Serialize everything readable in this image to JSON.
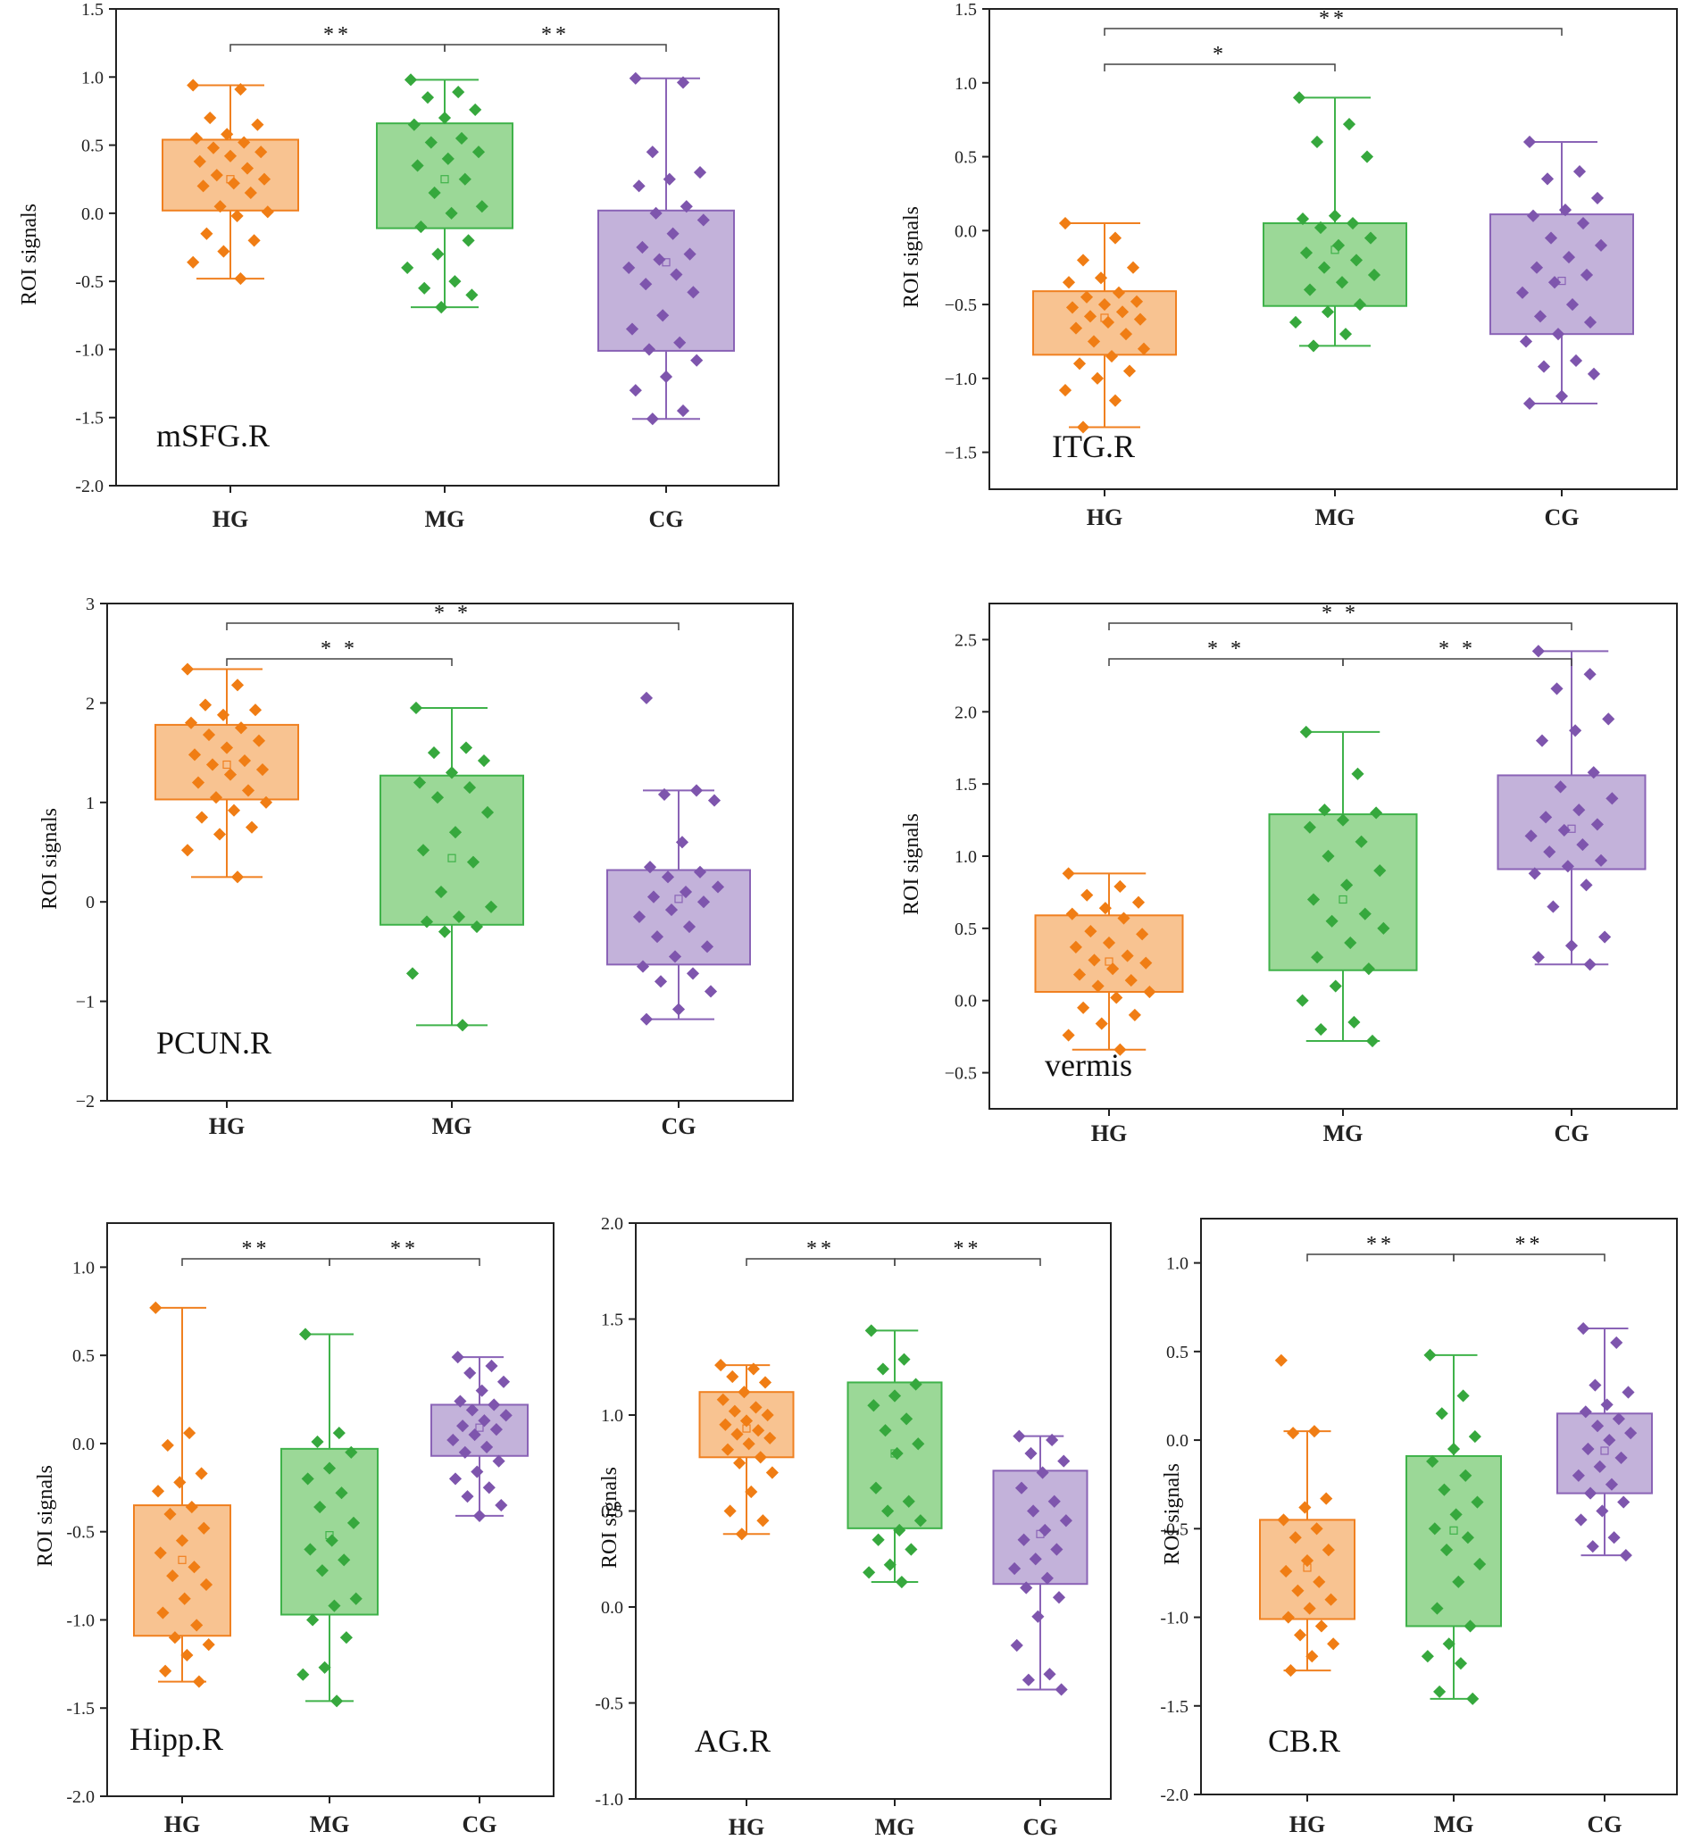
{
  "colors": {
    "HG": {
      "fill": "#f8c391",
      "stroke": "#f08020",
      "point": "#f07d14"
    },
    "MG": {
      "fill": "#9bd897",
      "stroke": "#3fb24a",
      "point": "#36a83d"
    },
    "CG": {
      "fill": "#c3b2da",
      "stroke": "#8a63b6",
      "point": "#7e55ad"
    }
  },
  "chart_data": [
    {
      "type": "boxplot",
      "title": "mSFG.R",
      "ylabel": "ROI signals",
      "categories": [
        "HG",
        "MG",
        "CG"
      ],
      "ylim": [
        -2.0,
        1.5
      ],
      "yticks": [
        -2.0,
        -1.5,
        -1.0,
        -0.5,
        0.0,
        0.5,
        1.0,
        1.5
      ],
      "tick_labels": [
        "-2.0",
        "-1.5",
        "-1.0",
        "-0.5",
        "0.0",
        "0.5",
        "1.0",
        "1.5"
      ],
      "boxes": [
        {
          "group": "HG",
          "q1": 0.02,
          "q3": 0.54,
          "mean": 0.25,
          "whisker_low": -0.48,
          "whisker_high": 0.94,
          "points": [
            0.94,
            0.91,
            0.7,
            0.65,
            0.58,
            0.55,
            0.52,
            0.48,
            0.45,
            0.42,
            0.38,
            0.33,
            0.28,
            0.25,
            0.22,
            0.2,
            0.15,
            0.05,
            0.01,
            -0.02,
            -0.15,
            -0.2,
            -0.28,
            -0.36,
            -0.48
          ]
        },
        {
          "group": "MG",
          "q1": -0.11,
          "q3": 0.66,
          "mean": 0.25,
          "whisker_low": -0.69,
          "whisker_high": 0.98,
          "points": [
            0.98,
            0.89,
            0.85,
            0.76,
            0.7,
            0.65,
            0.55,
            0.52,
            0.45,
            0.4,
            0.35,
            0.25,
            0.15,
            0.05,
            0.0,
            -0.1,
            -0.2,
            -0.3,
            -0.4,
            -0.5,
            -0.55,
            -0.6,
            -0.69
          ]
        },
        {
          "group": "CG",
          "q1": -1.01,
          "q3": 0.02,
          "mean": -0.36,
          "whisker_low": -1.51,
          "whisker_high": 0.99,
          "points": [
            0.99,
            0.96,
            0.45,
            0.3,
            0.25,
            0.2,
            0.05,
            0.0,
            -0.05,
            -0.15,
            -0.25,
            -0.3,
            -0.34,
            -0.4,
            -0.45,
            -0.52,
            -0.58,
            -0.75,
            -0.85,
            -0.95,
            -1.0,
            -1.08,
            -1.2,
            -1.3,
            -1.45,
            -1.51
          ]
        }
      ],
      "significance": [
        {
          "from": "HG",
          "to": "MG",
          "label": "**",
          "level": 0
        },
        {
          "from": "MG",
          "to": "CG",
          "label": "**",
          "level": 0
        }
      ]
    },
    {
      "type": "boxplot",
      "title": "ITG.R",
      "ylabel": "ROI signals",
      "categories": [
        "HG",
        "MG",
        "CG"
      ],
      "ylim": [
        -1.75,
        1.5
      ],
      "yticks": [
        -1.5,
        -1.0,
        -0.5,
        0.0,
        0.5,
        1.0,
        1.5
      ],
      "tick_labels": [
        "−1.5",
        "−1.0",
        "−0.5",
        "0.0",
        "0.5",
        "1.0",
        "1.5"
      ],
      "boxes": [
        {
          "group": "HG",
          "q1": -0.84,
          "q3": -0.41,
          "mean": -0.59,
          "whisker_low": -1.33,
          "whisker_high": 0.05,
          "points": [
            0.05,
            -0.05,
            -0.2,
            -0.25,
            -0.32,
            -0.35,
            -0.42,
            -0.45,
            -0.48,
            -0.5,
            -0.52,
            -0.55,
            -0.58,
            -0.6,
            -0.62,
            -0.66,
            -0.7,
            -0.75,
            -0.8,
            -0.85,
            -0.9,
            -0.95,
            -1.0,
            -1.08,
            -1.15,
            -1.33
          ]
        },
        {
          "group": "MG",
          "q1": -0.51,
          "q3": 0.05,
          "mean": -0.13,
          "whisker_low": -0.78,
          "whisker_high": 0.9,
          "points": [
            0.9,
            0.72,
            0.6,
            0.5,
            0.1,
            0.08,
            0.05,
            0.02,
            -0.05,
            -0.1,
            -0.15,
            -0.2,
            -0.25,
            -0.3,
            -0.35,
            -0.4,
            -0.5,
            -0.55,
            -0.62,
            -0.7,
            -0.78
          ]
        },
        {
          "group": "CG",
          "q1": -0.7,
          "q3": 0.11,
          "mean": -0.34,
          "whisker_low": -1.17,
          "whisker_high": 0.6,
          "points": [
            0.6,
            0.4,
            0.35,
            0.22,
            0.14,
            0.1,
            0.05,
            -0.05,
            -0.1,
            -0.18,
            -0.25,
            -0.3,
            -0.35,
            -0.42,
            -0.5,
            -0.58,
            -0.62,
            -0.7,
            -0.75,
            -0.88,
            -0.92,
            -0.97,
            -1.12,
            -1.17
          ]
        }
      ],
      "significance": [
        {
          "from": "HG",
          "to": "MG",
          "label": "*",
          "level": 0
        },
        {
          "from": "HG",
          "to": "CG",
          "label": "**",
          "level": 1
        }
      ]
    },
    {
      "type": "boxplot",
      "title": "PCUN.R",
      "ylabel": "ROI signals",
      "categories": [
        "HG",
        "MG",
        "CG"
      ],
      "ylim": [
        -2,
        3
      ],
      "yticks": [
        -2,
        -1,
        0,
        1,
        2,
        3
      ],
      "tick_labels": [
        "−2",
        "−1",
        "0",
        "1",
        "2",
        "3"
      ],
      "boxes": [
        {
          "group": "HG",
          "q1": 1.03,
          "q3": 1.78,
          "mean": 1.38,
          "whisker_low": 0.25,
          "whisker_high": 2.34,
          "points": [
            2.34,
            2.18,
            1.98,
            1.93,
            1.88,
            1.8,
            1.75,
            1.68,
            1.62,
            1.55,
            1.48,
            1.42,
            1.38,
            1.33,
            1.28,
            1.2,
            1.12,
            1.05,
            1.0,
            0.92,
            0.85,
            0.75,
            0.68,
            0.52,
            0.25
          ]
        },
        {
          "group": "MG",
          "q1": -0.23,
          "q3": 1.27,
          "mean": 0.44,
          "whisker_low": -1.24,
          "whisker_high": 1.95,
          "points": [
            1.95,
            1.55,
            1.5,
            1.42,
            1.3,
            1.2,
            1.15,
            1.05,
            0.9,
            0.7,
            0.52,
            0.4,
            0.1,
            -0.05,
            -0.15,
            -0.2,
            -0.25,
            -0.3,
            -0.72,
            -1.24
          ]
        },
        {
          "group": "CG",
          "q1": -0.63,
          "q3": 0.32,
          "mean": 0.03,
          "whisker_low": -1.18,
          "whisker_high": 1.12,
          "points": [
            2.05,
            1.12,
            1.08,
            1.02,
            0.6,
            0.35,
            0.3,
            0.25,
            0.15,
            0.1,
            0.05,
            0.0,
            -0.08,
            -0.15,
            -0.25,
            -0.35,
            -0.45,
            -0.55,
            -0.65,
            -0.72,
            -0.8,
            -0.9,
            -1.08,
            -1.18
          ]
        }
      ],
      "significance": [
        {
          "from": "HG",
          "to": "MG",
          "label": "* *",
          "level": 0
        },
        {
          "from": "HG",
          "to": "CG",
          "label": "* *",
          "level": 1
        }
      ]
    },
    {
      "type": "boxplot",
      "title": "vermis",
      "ylabel": "ROI signals",
      "categories": [
        "HG",
        "MG",
        "CG"
      ],
      "ylim": [
        -0.75,
        2.75
      ],
      "yticks": [
        -0.5,
        0.0,
        0.5,
        1.0,
        1.5,
        2.0,
        2.5
      ],
      "tick_labels": [
        "−0.5",
        "0.0",
        "0.5",
        "1.0",
        "1.5",
        "2.0",
        "2.5"
      ],
      "boxes": [
        {
          "group": "HG",
          "q1": 0.06,
          "q3": 0.59,
          "mean": 0.27,
          "whisker_low": -0.34,
          "whisker_high": 0.88,
          "points": [
            0.88,
            0.79,
            0.73,
            0.68,
            0.64,
            0.6,
            0.57,
            0.48,
            0.46,
            0.4,
            0.37,
            0.31,
            0.28,
            0.26,
            0.22,
            0.18,
            0.14,
            0.1,
            0.06,
            0.02,
            -0.05,
            -0.1,
            -0.16,
            -0.24,
            -0.34
          ]
        },
        {
          "group": "MG",
          "q1": 0.21,
          "q3": 1.29,
          "mean": 0.7,
          "whisker_low": -0.28,
          "whisker_high": 1.86,
          "points": [
            1.86,
            1.57,
            1.32,
            1.3,
            1.25,
            1.2,
            1.1,
            1.0,
            0.9,
            0.8,
            0.7,
            0.6,
            0.55,
            0.5,
            0.4,
            0.3,
            0.22,
            0.1,
            0.0,
            -0.15,
            -0.2,
            -0.28
          ]
        },
        {
          "group": "CG",
          "q1": 0.91,
          "q3": 1.56,
          "mean": 1.19,
          "whisker_low": 0.25,
          "whisker_high": 2.42,
          "points": [
            2.42,
            2.26,
            2.16,
            1.95,
            1.87,
            1.8,
            1.58,
            1.48,
            1.4,
            1.32,
            1.27,
            1.22,
            1.18,
            1.14,
            1.08,
            1.03,
            0.97,
            0.93,
            0.88,
            0.8,
            0.65,
            0.44,
            0.38,
            0.3,
            0.25
          ]
        }
      ],
      "significance": [
        {
          "from": "HG",
          "to": "MG",
          "label": "* *",
          "level": 0
        },
        {
          "from": "MG",
          "to": "CG",
          "label": "* *",
          "level": 0
        },
        {
          "from": "HG",
          "to": "CG",
          "label": "* *",
          "level": 1
        }
      ]
    },
    {
      "type": "boxplot",
      "title": "Hipp.R",
      "ylabel": "ROI signals",
      "categories": [
        "HG",
        "MG",
        "CG"
      ],
      "ylim": [
        -2.0,
        1.25
      ],
      "yticks": [
        -2.0,
        -1.5,
        -1.0,
        -0.5,
        0.0,
        0.5,
        1.0
      ],
      "tick_labels": [
        "-2.0",
        "-1.5",
        "-1.0",
        "-0.5",
        "0.0",
        "0.5",
        "1.0"
      ],
      "boxes": [
        {
          "group": "HG",
          "q1": -1.09,
          "q3": -0.35,
          "mean": -0.66,
          "whisker_low": -1.35,
          "whisker_high": 0.77,
          "points": [
            0.77,
            0.06,
            -0.01,
            -0.17,
            -0.22,
            -0.27,
            -0.36,
            -0.4,
            -0.48,
            -0.55,
            -0.62,
            -0.7,
            -0.75,
            -0.8,
            -0.88,
            -0.96,
            -1.03,
            -1.1,
            -1.14,
            -1.2,
            -1.29,
            -1.35
          ]
        },
        {
          "group": "MG",
          "q1": -0.97,
          "q3": -0.03,
          "mean": -0.52,
          "whisker_low": -1.46,
          "whisker_high": 0.62,
          "points": [
            0.62,
            0.06,
            0.01,
            -0.05,
            -0.14,
            -0.2,
            -0.28,
            -0.36,
            -0.45,
            -0.55,
            -0.6,
            -0.66,
            -0.72,
            -0.88,
            -0.92,
            -1.0,
            -1.1,
            -1.27,
            -1.31,
            -1.46
          ]
        },
        {
          "group": "CG",
          "q1": -0.07,
          "q3": 0.22,
          "mean": 0.09,
          "whisker_low": -0.41,
          "whisker_high": 0.49,
          "points": [
            0.49,
            0.44,
            0.4,
            0.35,
            0.3,
            0.24,
            0.22,
            0.19,
            0.16,
            0.13,
            0.1,
            0.08,
            0.05,
            0.02,
            -0.02,
            -0.05,
            -0.1,
            -0.16,
            -0.2,
            -0.25,
            -0.3,
            -0.35,
            -0.41
          ]
        }
      ],
      "significance": [
        {
          "from": "HG",
          "to": "MG",
          "label": "**",
          "level": 0
        },
        {
          "from": "MG",
          "to": "CG",
          "label": "**",
          "level": 0
        }
      ]
    },
    {
      "type": "boxplot",
      "title": "AG.R",
      "ylabel": "ROI signals",
      "categories": [
        "HG",
        "MG",
        "CG"
      ],
      "ylim": [
        -1.0,
        2.0
      ],
      "yticks": [
        -1.0,
        -0.5,
        0.0,
        0.5,
        1.0,
        1.5,
        2.0
      ],
      "tick_labels": [
        "-1.0",
        "-0.5",
        "0.0",
        "0.5",
        "1.0",
        "1.5",
        "2.0"
      ],
      "boxes": [
        {
          "group": "HG",
          "q1": 0.78,
          "q3": 1.12,
          "mean": 0.93,
          "whisker_low": 0.38,
          "whisker_high": 1.26,
          "points": [
            1.26,
            1.24,
            1.2,
            1.17,
            1.12,
            1.08,
            1.04,
            1.02,
            1.0,
            0.97,
            0.95,
            0.92,
            0.9,
            0.88,
            0.85,
            0.82,
            0.78,
            0.75,
            0.7,
            0.6,
            0.5,
            0.45,
            0.38
          ]
        },
        {
          "group": "MG",
          "q1": 0.41,
          "q3": 1.17,
          "mean": 0.8,
          "whisker_low": 0.13,
          "whisker_high": 1.44,
          "points": [
            1.44,
            1.29,
            1.24,
            1.16,
            1.1,
            1.05,
            0.98,
            0.92,
            0.85,
            0.8,
            0.62,
            0.55,
            0.5,
            0.45,
            0.4,
            0.35,
            0.3,
            0.22,
            0.18,
            0.13
          ]
        },
        {
          "group": "CG",
          "q1": 0.12,
          "q3": 0.71,
          "mean": 0.38,
          "whisker_low": -0.43,
          "whisker_high": 0.89,
          "points": [
            0.89,
            0.87,
            0.8,
            0.76,
            0.7,
            0.62,
            0.55,
            0.5,
            0.45,
            0.4,
            0.35,
            0.3,
            0.25,
            0.2,
            0.15,
            0.1,
            0.05,
            -0.05,
            -0.2,
            -0.35,
            -0.38,
            -0.43
          ]
        }
      ],
      "significance": [
        {
          "from": "HG",
          "to": "MG",
          "label": "**",
          "level": 0
        },
        {
          "from": "MG",
          "to": "CG",
          "label": "**",
          "level": 0
        }
      ]
    },
    {
      "type": "boxplot",
      "title": "CB.R",
      "ylabel": "ROI signals",
      "categories": [
        "HG",
        "MG",
        "CG"
      ],
      "ylim": [
        -2.0,
        1.25
      ],
      "yticks": [
        -2.0,
        -1.5,
        -1.0,
        -0.5,
        0.0,
        0.5,
        1.0
      ],
      "tick_labels": [
        "-2.0",
        "-1.5",
        "-1.0",
        "-0.5",
        "0.0",
        "0.5",
        "1.0"
      ],
      "boxes": [
        {
          "group": "HG",
          "q1": -1.01,
          "q3": -0.45,
          "mean": -0.72,
          "whisker_low": -1.3,
          "whisker_high": 0.05,
          "points": [
            0.45,
            0.05,
            0.04,
            -0.33,
            -0.38,
            -0.45,
            -0.5,
            -0.55,
            -0.62,
            -0.68,
            -0.74,
            -0.8,
            -0.85,
            -0.9,
            -0.95,
            -1.0,
            -1.05,
            -1.1,
            -1.15,
            -1.22,
            -1.3
          ]
        },
        {
          "group": "MG",
          "q1": -1.05,
          "q3": -0.09,
          "mean": -0.51,
          "whisker_low": -1.46,
          "whisker_high": 0.48,
          "points": [
            0.48,
            0.25,
            0.15,
            0.02,
            -0.05,
            -0.12,
            -0.2,
            -0.28,
            -0.35,
            -0.42,
            -0.5,
            -0.55,
            -0.62,
            -0.7,
            -0.8,
            -0.95,
            -1.05,
            -1.15,
            -1.22,
            -1.26,
            -1.42,
            -1.46
          ]
        },
        {
          "group": "CG",
          "q1": -0.3,
          "q3": 0.15,
          "mean": -0.06,
          "whisker_low": -0.65,
          "whisker_high": 0.63,
          "points": [
            0.63,
            0.55,
            0.31,
            0.27,
            0.2,
            0.16,
            0.12,
            0.08,
            0.04,
            0.0,
            -0.05,
            -0.1,
            -0.15,
            -0.2,
            -0.25,
            -0.3,
            -0.35,
            -0.4,
            -0.45,
            -0.55,
            -0.6,
            -0.65
          ]
        }
      ],
      "significance": [
        {
          "from": "HG",
          "to": "MG",
          "label": "**",
          "level": 0
        },
        {
          "from": "MG",
          "to": "CG",
          "label": "**",
          "level": 0
        }
      ]
    }
  ]
}
